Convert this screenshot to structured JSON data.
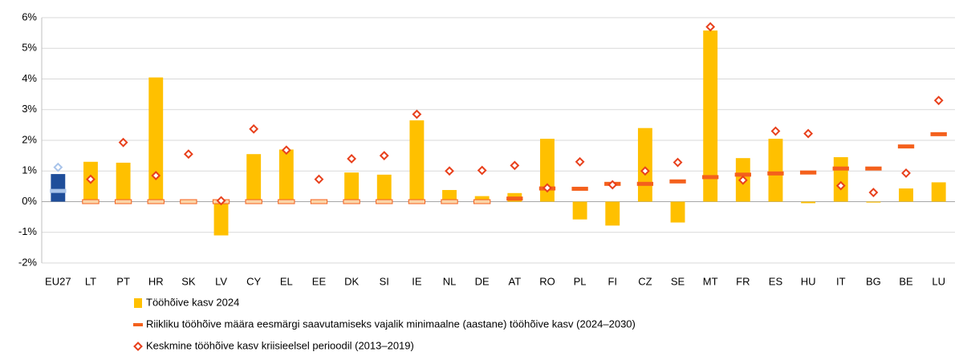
{
  "chart_data": {
    "type": "bar",
    "categories": [
      "EU27",
      "LT",
      "PT",
      "HR",
      "SK",
      "LV",
      "CY",
      "EL",
      "EE",
      "DK",
      "SI",
      "IE",
      "NL",
      "DE",
      "AT",
      "RO",
      "PL",
      "FI",
      "CZ",
      "SE",
      "MT",
      "FR",
      "ES",
      "HU",
      "IT",
      "BG",
      "BE",
      "LU"
    ],
    "highlight_index": 0,
    "series": [
      {
        "name": "Tööhõive kasv 2024",
        "mark": "bar",
        "color": "#ffc000",
        "highlight_color": "#1f4e9a",
        "values": [
          0.9,
          1.3,
          1.27,
          4.05,
          0.05,
          -1.1,
          1.55,
          1.7,
          0.05,
          0.95,
          0.88,
          2.65,
          0.38,
          0.18,
          0.28,
          2.05,
          -0.58,
          -0.78,
          2.4,
          -0.68,
          5.58,
          1.42,
          2.05,
          -0.05,
          1.45,
          -0.03,
          0.43,
          0.63
        ]
      },
      {
        "name": "Riikliku tööhõive määra eesmärgi saavutamiseks vajalik minimaalne (aastane) tööhõive kasv (2024–2030)",
        "mark": "dash",
        "color": "#f4601c",
        "highlight_color": "#a9c4ea",
        "values": [
          0.35,
          0,
          0,
          0,
          0,
          0,
          0,
          0,
          0,
          0,
          0,
          0,
          0,
          0,
          0.1,
          0.43,
          0.42,
          0.58,
          0.58,
          0.66,
          0.8,
          0.88,
          0.92,
          0.95,
          1.08,
          1.08,
          1.8,
          2.2
        ]
      },
      {
        "name": "Keskmine tööhõive kasv kriisieelsel perioodil (2013–2019)",
        "mark": "diamond",
        "color": "#e8401c",
        "highlight_color": "#a9c4ea",
        "values": [
          1.12,
          0.73,
          1.93,
          0.85,
          1.55,
          0.03,
          2.37,
          1.68,
          0.73,
          1.4,
          1.5,
          2.85,
          1.0,
          1.02,
          1.18,
          0.45,
          1.3,
          0.55,
          1.0,
          1.28,
          5.7,
          0.7,
          2.3,
          2.22,
          0.52,
          0.3,
          0.93,
          3.3
        ]
      }
    ],
    "ylim": [
      -2,
      6
    ],
    "yticks": [
      {
        "value": -2,
        "label": "-2%"
      },
      {
        "value": -1,
        "label": "-1%"
      },
      {
        "value": 0,
        "label": "0%"
      },
      {
        "value": 1,
        "label": "1%"
      },
      {
        "value": 2,
        "label": "2%"
      },
      {
        "value": 3,
        "label": "3%"
      },
      {
        "value": 4,
        "label": "4%"
      },
      {
        "value": 5,
        "label": "5%"
      },
      {
        "value": 6,
        "label": "6%"
      }
    ],
    "grid": true
  }
}
